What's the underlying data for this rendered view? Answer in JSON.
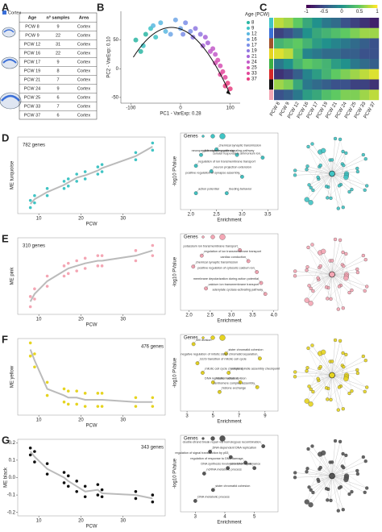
{
  "panel_labels": [
    "A",
    "B",
    "C",
    "D",
    "E",
    "F",
    "G"
  ],
  "table": {
    "legend": "Cortex",
    "header": [
      "Age",
      "nº samples",
      "Area"
    ],
    "rows": [
      [
        "PCW 8",
        "9",
        "Cortex"
      ],
      [
        "PCW 9",
        "22",
        "Cortex"
      ],
      [
        "PCW 12",
        "31",
        "Cortex"
      ],
      [
        "PCW 16",
        "22",
        "Cortex"
      ],
      [
        "PCW 17",
        "9",
        "Cortex"
      ],
      [
        "PCW 19",
        "8",
        "Cortex"
      ],
      [
        "PCW 21",
        "7",
        "Cortex"
      ],
      [
        "PCW 24",
        "9",
        "Cortex"
      ],
      [
        "PCW 25",
        "6",
        "Cortex"
      ],
      [
        "PCW 33",
        "7",
        "Cortex"
      ],
      [
        "PCW 37",
        "6",
        "Cortex"
      ]
    ]
  },
  "chart_data": [
    {
      "type": "scatter",
      "xlabel": "PC1 - VarExp: 0.28",
      "ylabel": "PC2 - VarExp: 0.10",
      "legend_title": "Age (PCW)",
      "xlim": [
        -120,
        120
      ],
      "ylim": [
        -60,
        100
      ],
      "xticks": [
        -100,
        0,
        100
      ],
      "yticks": [
        -50,
        0,
        50
      ],
      "series": [
        {
          "name": "8",
          "color": "#2bb6a3",
          "x": [
            -80,
            -90,
            -70
          ],
          "values": [
            30,
            50,
            60
          ]
        },
        {
          "name": "9",
          "color": "#3ec3c6",
          "x": [
            -60,
            -75,
            -50
          ],
          "values": [
            70,
            40,
            55
          ]
        },
        {
          "name": "12",
          "color": "#5ab7e0",
          "x": [
            -40,
            -30,
            -55
          ],
          "values": [
            80,
            65,
            75
          ]
        },
        {
          "name": "16",
          "color": "#6fa6e6",
          "x": [
            -10,
            0,
            -20
          ],
          "values": [
            85,
            70,
            60
          ]
        },
        {
          "name": "17",
          "color": "#7b8ee8",
          "x": [
            10,
            20,
            5
          ],
          "values": [
            80,
            65,
            60
          ]
        },
        {
          "name": "19",
          "color": "#8f78e0",
          "x": [
            30,
            40,
            25
          ],
          "values": [
            70,
            60,
            55
          ]
        },
        {
          "name": "21",
          "color": "#a765d8",
          "x": [
            50,
            55,
            45
          ],
          "values": [
            55,
            45,
            40
          ]
        },
        {
          "name": "24",
          "color": "#c25bc9",
          "x": [
            65,
            70,
            60
          ],
          "values": [
            35,
            25,
            30
          ]
        },
        {
          "name": "25",
          "color": "#d651b4",
          "x": [
            75,
            80,
            70
          ],
          "values": [
            15,
            5,
            10
          ]
        },
        {
          "name": "33",
          "color": "#e2479a",
          "x": [
            85,
            90,
            80
          ],
          "values": [
            -5,
            -15,
            -10
          ]
        },
        {
          "name": "37",
          "color": "#e83f80",
          "x": [
            95,
            100,
            90
          ],
          "values": [
            -25,
            -35,
            -30
          ]
        }
      ]
    },
    {
      "type": "heatmap",
      "categories": [
        "PCW 8",
        "PCW 9",
        "PCW 12",
        "PCW 16",
        "PCW 17",
        "PCW 19",
        "PCW 21",
        "PCW 24",
        "PCW 25",
        "PCW 33",
        "PCW 37"
      ],
      "row_colors": [
        "#40c4c4",
        "#3a6fd8",
        "#a0522d",
        "#e6d420",
        "#3cb043",
        "#d62828",
        "#111111",
        "#f4a6b4"
      ],
      "clim": [
        -1,
        1
      ],
      "cticks": [
        -1,
        -0.5,
        0,
        0.5,
        1
      ],
      "values": [
        [
          0.8,
          0.7,
          0.5,
          0.2,
          0.0,
          -0.2,
          -0.3,
          -0.5,
          -0.6,
          -0.7,
          -0.8
        ],
        [
          -0.6,
          -0.5,
          -0.3,
          0.0,
          0.2,
          0.3,
          0.4,
          0.5,
          0.6,
          0.7,
          0.7
        ],
        [
          0.3,
          0.4,
          0.5,
          0.3,
          0.1,
          0.0,
          -0.1,
          -0.2,
          -0.3,
          -0.4,
          -0.5
        ],
        [
          0.9,
          0.8,
          0.4,
          -0.1,
          -0.2,
          -0.3,
          -0.3,
          -0.4,
          -0.4,
          -0.5,
          -0.5
        ],
        [
          -0.2,
          0.0,
          0.3,
          0.5,
          0.4,
          0.3,
          0.1,
          0.0,
          -0.2,
          -0.3,
          -0.4
        ],
        [
          -0.7,
          -0.6,
          -0.4,
          -0.1,
          0.1,
          0.3,
          0.5,
          0.6,
          0.7,
          0.8,
          0.9
        ],
        [
          0.7,
          0.6,
          0.2,
          -0.2,
          -0.3,
          -0.4,
          -0.5,
          -0.5,
          -0.6,
          -0.6,
          -0.7
        ],
        [
          -0.5,
          -0.4,
          -0.2,
          0.1,
          0.2,
          0.4,
          0.5,
          0.6,
          0.6,
          0.7,
          0.8
        ]
      ]
    },
    {
      "type": "scatter",
      "annotation": "782 genes",
      "xlabel": "PCW",
      "ylabel": "ME turquoise",
      "color": "#40c4c4",
      "xlim": [
        5,
        40
      ],
      "ylim": [
        -0.12,
        0.2
      ],
      "xticks": [
        10,
        20,
        30
      ],
      "x": [
        8,
        8,
        9,
        9,
        12,
        12,
        16,
        16,
        17,
        17,
        19,
        19,
        21,
        21,
        24,
        24,
        25,
        25,
        33,
        33,
        37,
        37
      ],
      "values": [
        -0.095,
        -0.065,
        -0.075,
        -0.045,
        -0.045,
        -0.015,
        -0.015,
        0.015,
        -0.005,
        0.025,
        0.015,
        0.045,
        0.025,
        0.055,
        0.045,
        0.075,
        0.055,
        0.085,
        0.105,
        0.135,
        0.145,
        0.175
      ],
      "line": {
        "x": [
          8,
          9,
          12,
          16,
          17,
          19,
          21,
          24,
          25,
          33,
          37
        ],
        "values": [
          -0.08,
          -0.06,
          -0.03,
          0.0,
          0.01,
          0.03,
          0.04,
          0.06,
          0.07,
          0.12,
          0.16
        ]
      }
    },
    {
      "type": "scatter",
      "xlabel": "Enrichment",
      "ylabel": "-log10 PValue",
      "legend_title": "Genes",
      "color": "#40c4c4",
      "xlim": [
        1.8,
        3.7
      ],
      "ylim": [
        0,
        14
      ],
      "xticks": [
        {
          "value": 2,
          "label": "2.0"
        },
        2.5,
        {
          "value": 3,
          "label": "3.0"
        },
        3.5
      ],
      "x": [
        2.5,
        2.2,
        2.9,
        3.4,
        2.1,
        2.4,
        3.0,
        2.1,
        2.7
      ],
      "values": [
        11,
        10,
        10,
        9.5,
        8,
        7,
        6,
        3,
        3
      ],
      "labels": [
        "chemical synaptic transmission",
        "glutamate receptor signaling pathway",
        "neuropeptide signaling pathway",
        "cellular response to ammonium ion",
        "regulation of ion transmembrane transport",
        "neuron projection extension",
        "positive regulation of synapse assembly",
        "action potential",
        "feeding behavior"
      ]
    },
    {
      "type": "scatter",
      "annotation": "310 genes",
      "xlabel": "PCW",
      "ylabel": "ME pink",
      "color": "#f4a6b4",
      "xlim": [
        5,
        40
      ],
      "ylim": [
        -0.15,
        0.15
      ],
      "xticks": [
        10,
        20,
        30
      ],
      "x": [
        8,
        8,
        9,
        9,
        12,
        12,
        16,
        16,
        17,
        17,
        19,
        19,
        21,
        21,
        24,
        24,
        25,
        25,
        33,
        33,
        37,
        37
      ],
      "values": [
        -0.12,
        -0.08,
        -0.09,
        -0.05,
        -0.04,
        0.0,
        0.0,
        0.04,
        0.01,
        0.05,
        0.02,
        0.06,
        0.03,
        0.07,
        0.04,
        0.08,
        0.04,
        0.08,
        0.06,
        0.1,
        0.08,
        0.12
      ],
      "line": {
        "x": [
          8,
          9,
          12,
          16,
          17,
          19,
          21,
          24,
          25,
          33,
          37
        ],
        "values": [
          -0.1,
          -0.07,
          -0.02,
          0.02,
          0.03,
          0.04,
          0.05,
          0.06,
          0.06,
          0.08,
          0.1
        ]
      }
    },
    {
      "type": "scatter",
      "xlabel": "Enrichment",
      "ylabel": "-log10 PValue",
      "legend_title": "Genes",
      "color": "#f4a6b4",
      "xlim": [
        1.8,
        4.1
      ],
      "ylim": [
        0,
        14
      ],
      "xticks": [
        {
          "value": 2,
          "label": "2.0"
        },
        2.5,
        {
          "value": 3,
          "label": "3.0"
        },
        3.5,
        {
          "value": 4,
          "label": "4.0"
        }
      ],
      "x": [
        3.2,
        2.3,
        3.4,
        2.1,
        3.6,
        3.7,
        2.4,
        3.8
      ],
      "values": [
        11,
        10,
        9,
        8,
        7,
        5,
        4,
        3
      ],
      "labels": [
        "potassium ion transmembrane transport",
        "regulation of ion transmembrane transport",
        "cardiac conduction",
        "chemical synaptic transmission",
        "positive regulation of cytosolic calcium ion",
        "membrane depolarization during action potential",
        "calcium ion transmembrane transport",
        "adenylate cyclase-activating pathway"
      ]
    },
    {
      "type": "scatter",
      "annotation": "476 genes",
      "xlabel": "PCW",
      "ylabel": "ME yellow",
      "color": "#e6d420",
      "xlim": [
        5,
        40
      ],
      "ylim": [
        -0.1,
        0.25
      ],
      "xticks": [
        10,
        20,
        30
      ],
      "x": [
        8,
        8,
        9,
        9,
        12,
        12,
        16,
        16,
        17,
        17,
        19,
        19,
        21,
        21,
        24,
        24,
        25,
        25,
        33,
        33,
        37,
        37
      ],
      "values": [
        0.17,
        0.23,
        0.12,
        0.18,
        -0.01,
        0.05,
        -0.04,
        0.02,
        -0.05,
        0.01,
        -0.05,
        0.01,
        -0.06,
        0.0,
        -0.06,
        0.0,
        -0.06,
        0.0,
        -0.06,
        -0.02,
        -0.06,
        -0.02
      ],
      "line": {
        "x": [
          8,
          9,
          12,
          16,
          17,
          19,
          21,
          24,
          25,
          33,
          37
        ],
        "values": [
          0.2,
          0.15,
          0.02,
          -0.01,
          -0.02,
          -0.02,
          -0.03,
          -0.03,
          -0.03,
          -0.04,
          -0.04
        ]
      }
    },
    {
      "type": "scatter",
      "xlabel": "Enrichment",
      "ylabel": "-log10 PValue",
      "legend_title": "Genes",
      "color": "#e6d420",
      "xlim": [
        2.5,
        10
      ],
      "ylim": [
        0,
        16
      ],
      "xticks": [
        3,
        5,
        7,
        9
      ],
      "x": [
        3.5,
        3.8,
        6.0,
        8.6,
        4.2,
        6.2,
        7.1,
        5.5,
        8.4,
        5.0
      ],
      "values": [
        14,
        10,
        12,
        11,
        8,
        8,
        6,
        4,
        5,
        6
      ],
      "labels": [
        "cell division",
        "G1/S transition of mitotic cell cycle",
        "sister chromatid cohesion",
        "negative regulation of mitotic sister chromatid separation",
        "mitotic cell cycle checkpoint",
        "mitotic spindle assembly checkpoint",
        "DNA replication initiation",
        "histone exchange",
        "centromere complex assembly",
        "mitotic nuclear division"
      ]
    },
    {
      "type": "scatter",
      "annotation": "343 genes",
      "xlabel": "PCW",
      "ylabel": "ME black",
      "color": "#111111",
      "xlim": [
        5,
        40
      ],
      "ylim": [
        -0.22,
        0.22
      ],
      "xticks": [
        10,
        20,
        30
      ],
      "yticks": [
        0.2,
        0.1,
        {
          "value": 0,
          "label": "0.0"
        },
        -0.1,
        -0.2
      ],
      "x": [
        8,
        8,
        9,
        9,
        12,
        12,
        16,
        16,
        17,
        17,
        19,
        19,
        21,
        21,
        24,
        24,
        25,
        25,
        33,
        33,
        37,
        37
      ],
      "values": [
        0.13,
        0.17,
        0.09,
        0.15,
        0.02,
        0.08,
        -0.03,
        0.03,
        -0.05,
        0.01,
        -0.08,
        -0.02,
        -0.11,
        -0.05,
        -0.1,
        -0.04,
        -0.11,
        -0.07,
        -0.12,
        -0.08,
        -0.14,
        -0.1
      ],
      "line": {
        "x": [
          8,
          9,
          12,
          16,
          17,
          19,
          21,
          24,
          25,
          33,
          37
        ],
        "values": [
          0.15,
          0.12,
          0.05,
          0.0,
          -0.02,
          -0.05,
          -0.08,
          -0.07,
          -0.09,
          -0.1,
          -0.12
        ]
      }
    },
    {
      "type": "scatter",
      "xlabel": "Enrichment",
      "ylabel": "-log10 PValue",
      "legend_title": "Genes",
      "color": "#555555",
      "xlim": [
        2.5,
        5.8
      ],
      "ylim": [
        0,
        14
      ],
      "xticks": [
        3,
        4,
        5
      ],
      "x": [
        5.3,
        3.5,
        4.2,
        4.1,
        3.3,
        5.0,
        4.7,
        3.6,
        3.0
      ],
      "values": [
        12,
        11,
        10,
        8,
        7,
        8,
        9,
        4,
        2
      ],
      "labels": [
        "double-strand break repair via homologous recombination",
        "DNA-dependent DNA replication",
        "regulation of signal transduction by p53",
        "telomere maintenance",
        "ncRNA metabolic process",
        "DNA synthesis involved in DNA repair",
        "regulation of response to DNA damage",
        "sister chromatid cohesion",
        "DNA metabolic process"
      ]
    }
  ]
}
